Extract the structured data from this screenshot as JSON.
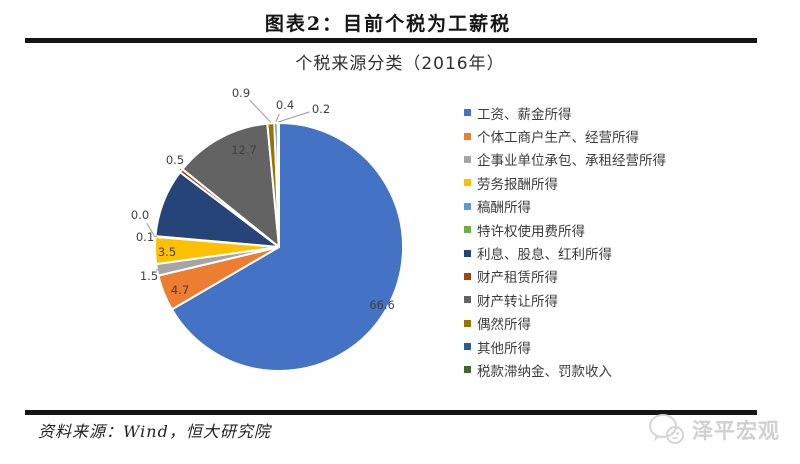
{
  "header": {
    "title": "图表2：目前个税为工薪税"
  },
  "chart": {
    "title": "个税来源分类（2016年）"
  },
  "chart_data": {
    "type": "pie",
    "title": "个税来源分类（2016年）",
    "unit": "percent",
    "legend_position": "right",
    "start_angle_deg": 0,
    "direction": "clockwise",
    "categories": [
      "工资、薪金所得",
      "个体工商户生产、经营所得",
      "企事业单位承包、承租经营所得",
      "劳务报酬所得",
      "稿酬所得",
      "特许权使用费所得",
      "利息、股息、红利所得",
      "财产租赁所得",
      "财产转让所得",
      "偶然所得",
      "其他所得",
      "税款滞纳金、罚款收入"
    ],
    "values": [
      66.6,
      4.7,
      1.5,
      3.5,
      0.1,
      0.0,
      8.9,
      0.5,
      12.7,
      0.9,
      0.4,
      0.2
    ],
    "data_labels": [
      "66.6",
      "4.7",
      "1.5",
      "3.5",
      "0.1",
      "0.0",
      null,
      "0.5",
      "12.7",
      "0.9",
      "0.4",
      "0.2"
    ],
    "colors": [
      "#4472C4",
      "#ED7D31",
      "#A5A5A5",
      "#FFC000",
      "#5B9BD5",
      "#70AD47",
      "#264478",
      "#9E480E",
      "#636363",
      "#997300",
      "#255E91",
      "#43682B"
    ],
    "label_color": "#3f3f3f"
  },
  "footer": {
    "source": "资料来源：Wind，恒大研究院",
    "watermark": "泽平宏观"
  }
}
